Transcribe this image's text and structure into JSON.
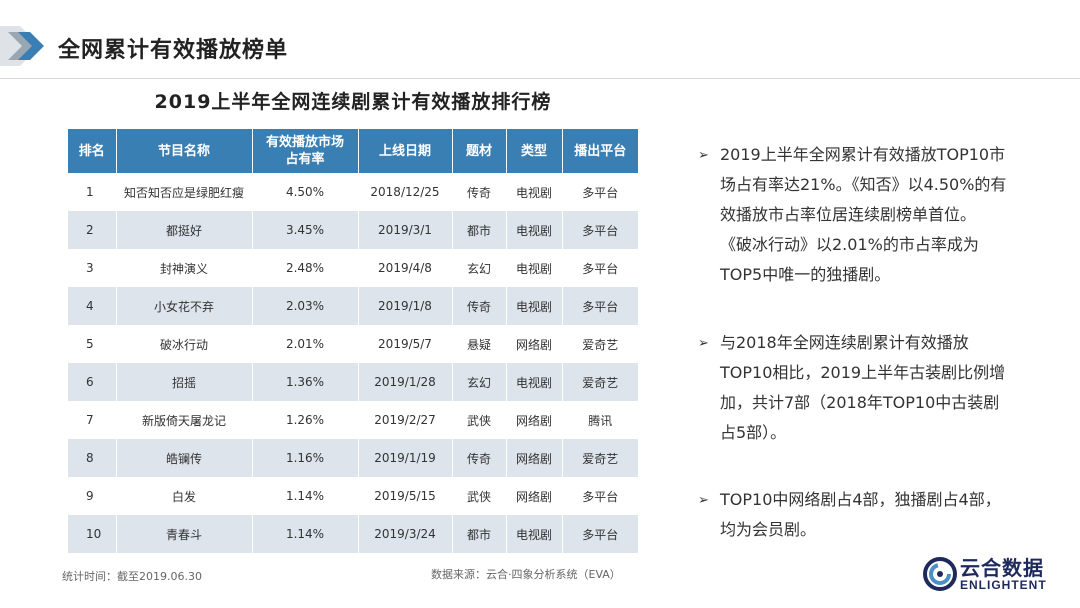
{
  "header": {
    "title": "全网累计有效播放榜单"
  },
  "table": {
    "title": "2019上半年全网连续剧累计有效播放排行榜",
    "headers": [
      "排名",
      "节目名称",
      "有效播放市场\n占有率",
      "上线日期",
      "题材",
      "类型",
      "播出平台"
    ],
    "rows": [
      [
        "1",
        "知否知否应是绿肥红瘦",
        "4.50%",
        "2018/12/25",
        "传奇",
        "电视剧",
        "多平台"
      ],
      [
        "2",
        "都挺好",
        "3.45%",
        "2019/3/1",
        "都市",
        "电视剧",
        "多平台"
      ],
      [
        "3",
        "封神演义",
        "2.48%",
        "2019/4/8",
        "玄幻",
        "电视剧",
        "多平台"
      ],
      [
        "4",
        "小女花不弃",
        "2.03%",
        "2019/1/8",
        "传奇",
        "电视剧",
        "多平台"
      ],
      [
        "5",
        "破冰行动",
        "2.01%",
        "2019/5/7",
        "悬疑",
        "网络剧",
        "爱奇艺"
      ],
      [
        "6",
        "招摇",
        "1.36%",
        "2019/1/28",
        "玄幻",
        "电视剧",
        "爱奇艺"
      ],
      [
        "7",
        "新版倚天屠龙记",
        "1.26%",
        "2019/2/27",
        "武侠",
        "网络剧",
        "腾讯"
      ],
      [
        "8",
        "皓镧传",
        "1.16%",
        "2019/1/19",
        "传奇",
        "网络剧",
        "爱奇艺"
      ],
      [
        "9",
        "白发",
        "1.14%",
        "2019/5/15",
        "武侠",
        "网络剧",
        "多平台"
      ],
      [
        "10",
        "青春斗",
        "1.14%",
        "2019/3/24",
        "都市",
        "电视剧",
        "多平台"
      ]
    ],
    "note_time": "统计时间：截至2019.06.30",
    "note_source": "数据来源：云合·四象分析系统（EVA）"
  },
  "bullets": {
    "arrow": "➢",
    "b1": [
      "2019上半年全网累计有效播放TOP10市",
      "场占有率达21%。《知否》以4.50%的有",
      "效播放市占率位居连续剧榜单首位。",
      "《破冰行动》以2.01%的市占率成为",
      "TOP5中唯一的独播剧。"
    ],
    "b2": [
      "与2018年全网连续剧累计有效播放",
      "TOP10相比，2019上半年古装剧比例增",
      "加，共计7部（2018年TOP10中古装剧",
      "占5部）。"
    ],
    "b3": [
      "TOP10中网络剧占4部，独播剧占4部，",
      "均为会员剧。"
    ]
  },
  "brand": {
    "name": "云合数据",
    "sub": "ENLIGHTENT"
  },
  "colors": {
    "header_bg": "#3a7fb4",
    "stripe": "#dde4ec",
    "brand": "#1e2a5c",
    "logo_accent": "#4a90c4"
  }
}
